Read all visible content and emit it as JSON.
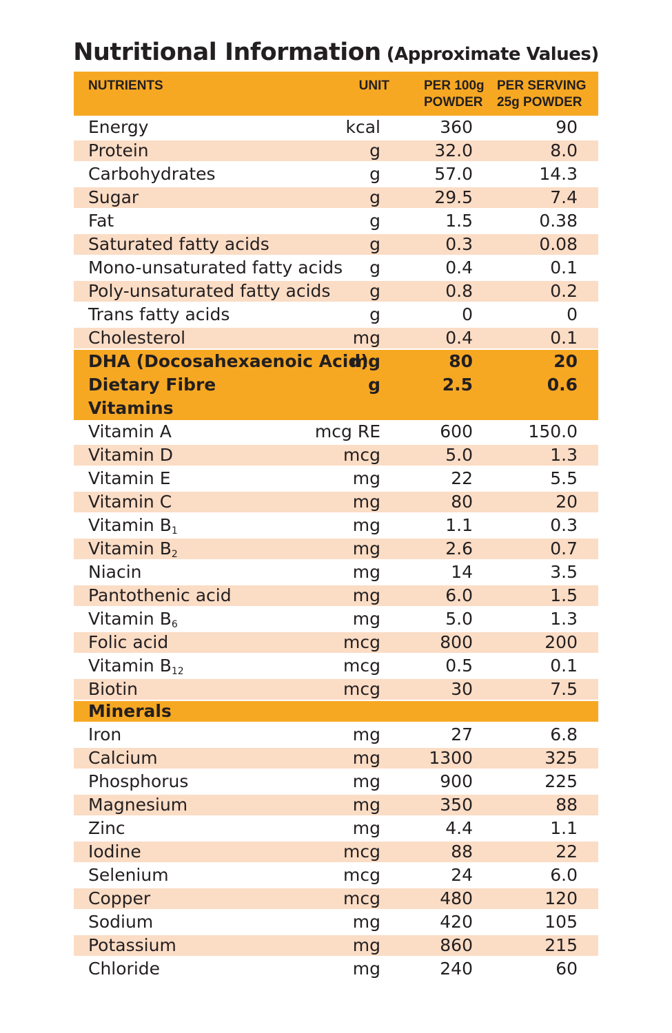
{
  "title": {
    "main": "Nutritional Information",
    "sub": "(Approximate Values)"
  },
  "header": {
    "nutrients": "NUTRIENTS",
    "unit": "UNIT",
    "per100_line1": "PER 100g",
    "per100_line2": "POWDER",
    "serving_line1": "PER SERVING",
    "serving_line2": "25g POWDER"
  },
  "macros": [
    {
      "name": "Energy",
      "unit": "kcal",
      "per100": "360",
      "serving": "90"
    },
    {
      "name": "Protein",
      "unit": "g",
      "per100": "32.0",
      "serving": "8.0"
    },
    {
      "name": "Carbohydrates",
      "unit": "g",
      "per100": "57.0",
      "serving": "14.3"
    },
    {
      "name": " Sugar",
      "unit": "g",
      "per100": "29.5",
      "serving": "7.4"
    },
    {
      "name": "Fat",
      "unit": "g",
      "per100": "1.5",
      "serving": "0.38"
    },
    {
      "name": "Saturated fatty acids",
      "unit": "g",
      "per100": "0.3",
      "serving": "0.08"
    },
    {
      "name": "Mono-unsaturated fatty acids",
      "unit": "g",
      "per100": "0.4",
      "serving": "0.1"
    },
    {
      "name": "Poly-unsaturated fatty acids",
      "unit": "g",
      "per100": "0.8",
      "serving": "0.2"
    },
    {
      "name": "Trans fatty acids",
      "unit": "g",
      "per100": "0",
      "serving": "0"
    },
    {
      "name": "Cholesterol",
      "unit": "mg",
      "per100": "0.4",
      "serving": "0.1"
    }
  ],
  "highlight": [
    {
      "name": "DHA (Docosahexaenoic Acid)",
      "unit": "mg",
      "per100": "80",
      "serving": "20"
    },
    {
      "name": "Dietary Fibre",
      "unit": "g",
      "per100": "2.5",
      "serving": "0.6"
    }
  ],
  "vitamins_label": "Vitamins",
  "vitamins": [
    {
      "name": "Vitamin A",
      "sub": "",
      "unit": "mcg RE",
      "per100": "600",
      "serving": "150.0"
    },
    {
      "name": "Vitamin D",
      "sub": "",
      "unit": "mcg",
      "per100": "5.0",
      "serving": "1.3"
    },
    {
      "name": "Vitamin E",
      "sub": "",
      "unit": "mg",
      "per100": "22",
      "serving": "5.5"
    },
    {
      "name": "Vitamin C",
      "sub": "",
      "unit": "mg",
      "per100": "80",
      "serving": "20"
    },
    {
      "name": "Vitamin B",
      "sub": "1",
      "unit": "mg",
      "per100": "1.1",
      "serving": "0.3"
    },
    {
      "name": "Vitamin B",
      "sub": "2",
      "unit": "mg",
      "per100": "2.6",
      "serving": "0.7"
    },
    {
      "name": "Niacin",
      "sub": "",
      "unit": "mg",
      "per100": "14",
      "serving": "3.5"
    },
    {
      "name": "Pantothenic acid",
      "sub": "",
      "unit": "mg",
      "per100": "6.0",
      "serving": "1.5"
    },
    {
      "name": "Vitamin B",
      "sub": "6",
      "unit": "mg",
      "per100": "5.0",
      "serving": "1.3"
    },
    {
      "name": "Folic acid",
      "sub": "",
      "unit": "mcg",
      "per100": "800",
      "serving": "200"
    },
    {
      "name": "Vitamin B",
      "sub": "12",
      "unit": "mcg",
      "per100": "0.5",
      "serving": "0.1"
    },
    {
      "name": "Biotin",
      "sub": "",
      "unit": "mcg",
      "per100": "30",
      "serving": "7.5"
    }
  ],
  "minerals_label": "Minerals",
  "minerals": [
    {
      "name": "Iron",
      "unit": "mg",
      "per100": "27",
      "serving": "6.8"
    },
    {
      "name": "Calcium",
      "unit": "mg",
      "per100": "1300",
      "serving": "325"
    },
    {
      "name": "Phosphorus",
      "unit": "mg",
      "per100": "900",
      "serving": "225"
    },
    {
      "name": "Magnesium",
      "unit": "mg",
      "per100": "350",
      "serving": "88"
    },
    {
      "name": "Zinc",
      "unit": "mg",
      "per100": "4.4",
      "serving": "1.1"
    },
    {
      "name": "Iodine",
      "unit": "mcg",
      "per100": "88",
      "serving": "22"
    },
    {
      "name": "Selenium",
      "unit": "mcg",
      "per100": "24",
      "serving": "6.0"
    },
    {
      "name": "Copper",
      "unit": "mcg",
      "per100": "480",
      "serving": "120"
    },
    {
      "name": "Sodium",
      "unit": "mg",
      "per100": "420",
      "serving": "105"
    },
    {
      "name": "Potassium",
      "unit": "mg",
      "per100": "860",
      "serving": "215"
    },
    {
      "name": "Chloride",
      "unit": "mg",
      "per100": "240",
      "serving": "60"
    }
  ],
  "colors": {
    "accent_orange": "#f7a823",
    "row_shade": "#fbdcc5",
    "text": "#231f20"
  }
}
